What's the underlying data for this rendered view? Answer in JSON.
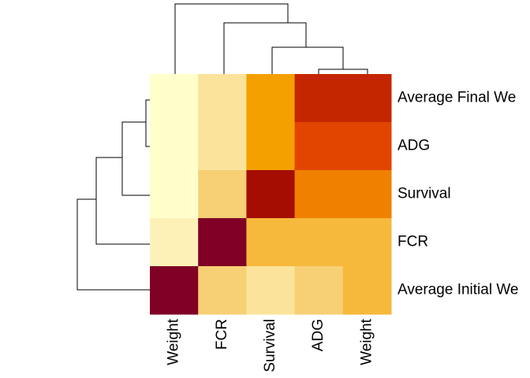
{
  "chart_data": {
    "type": "heatmap",
    "rows": [
      "Average Final We",
      "ADG",
      "Survival",
      "FCR",
      "Average Initial We"
    ],
    "columns": [
      "Weight",
      "FCR",
      "Survival",
      "ADG",
      "Weight"
    ],
    "values": [
      [
        0,
        2,
        5,
        8,
        8
      ],
      [
        0,
        2,
        5,
        7,
        7
      ],
      [
        0,
        3,
        9,
        6,
        6
      ],
      [
        1,
        10,
        4,
        4,
        4
      ],
      [
        10,
        3,
        2,
        3,
        4
      ]
    ],
    "colors": [
      "#FFFFCC",
      "#FEF1B8",
      "#FBE39B",
      "#F7CF75",
      "#F6B93B",
      "#F4A000",
      "#F08000",
      "#E24500",
      "#C42600",
      "#A50D00",
      "#800026"
    ]
  }
}
